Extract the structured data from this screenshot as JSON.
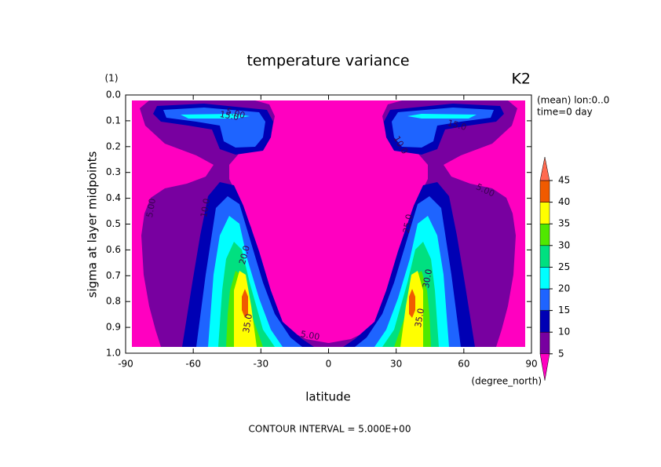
{
  "chart_data": {
    "type": "contour",
    "title": "temperature variance",
    "y_unit": "(1)",
    "variable": "K2",
    "info": [
      "(mean) lon:0..0",
      "time=0 day"
    ],
    "x_label": "latitude",
    "x_unit": "(degree_north)",
    "y_label": "sigma at layer midpoints",
    "footer": "CONTOUR INTERVAL = 5.000E+00",
    "xlim": [
      -90,
      90
    ],
    "xticks": [
      -90,
      -60,
      -30,
      0,
      30,
      60,
      90
    ],
    "ylim": [
      0,
      1
    ],
    "y_reversed": true,
    "yticks": [
      {
        "value": 0,
        "label": "0.0"
      },
      {
        "value": 0.1,
        "label": "0.1"
      },
      {
        "value": 0.2,
        "label": "0.2"
      },
      {
        "value": 0.3,
        "label": "0.3"
      },
      {
        "value": 0.4,
        "label": "0.4"
      },
      {
        "value": 0.5,
        "label": "0.5"
      },
      {
        "value": 0.6,
        "label": "0.6"
      },
      {
        "value": 0.7,
        "label": "0.7"
      },
      {
        "value": 0.8,
        "label": "0.8"
      },
      {
        "value": 0.9,
        "label": "0.9"
      },
      {
        "value": 1,
        "label": "1.0"
      }
    ],
    "levels": [
      5,
      10,
      15,
      20,
      25,
      30,
      35,
      40,
      45
    ],
    "colors": [
      "#ff00c0",
      "#7800a0",
      "#0000b4",
      "#1e64ff",
      "#00ffff",
      "#00e080",
      "#50e800",
      "#ffff00",
      "#f05a00",
      "#ff6a50"
    ],
    "contour_labels": [
      "5.00",
      "10.0",
      "15.0",
      "20.0",
      "35.0",
      "5.00",
      "5.00",
      "10.0",
      "25.0",
      "30.0",
      "35.0",
      "15.0",
      "5.00"
    ]
  }
}
